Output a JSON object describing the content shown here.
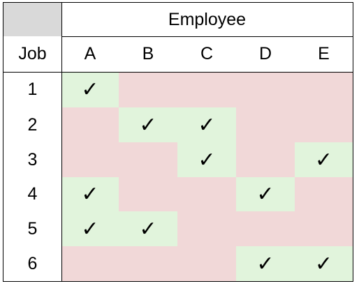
{
  "table": {
    "header": "Employee",
    "row_header": "Job",
    "columns": [
      "A",
      "B",
      "C",
      "D",
      "E"
    ],
    "rows": [
      {
        "label": "1",
        "cells": [
          "✓",
          null,
          null,
          null,
          null
        ]
      },
      {
        "label": "2",
        "cells": [
          null,
          "✓",
          "✓",
          null,
          null
        ]
      },
      {
        "label": "3",
        "cells": [
          null,
          null,
          "✓",
          null,
          "✓"
        ]
      },
      {
        "label": "4",
        "cells": [
          "✓",
          null,
          null,
          "✓",
          null
        ]
      },
      {
        "label": "5",
        "cells": [
          "✓",
          "✓",
          null,
          null,
          null
        ]
      },
      {
        "label": "6",
        "cells": [
          null,
          null,
          null,
          "✓",
          "✓"
        ]
      }
    ]
  }
}
